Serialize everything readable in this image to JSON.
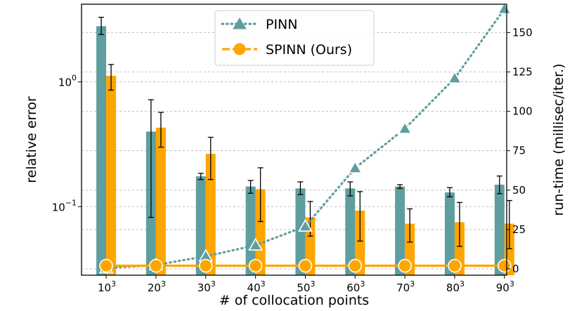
{
  "chart_data": {
    "type": "bar",
    "categories": [
      "10",
      "20",
      "30",
      "40",
      "50",
      "60",
      "70",
      "80",
      "90"
    ],
    "category_exponent": "3",
    "xlabel": "# of collocation points",
    "ylabel_left": "relative error",
    "ylabel_right": "run-time (millisec/iter.)",
    "left_axis": {
      "scale": "log",
      "range": [
        0.0282,
        4.2
      ],
      "ticks": [
        {
          "base": "10",
          "exp": "0",
          "value": 1
        },
        {
          "base": "10",
          "exp": "−1",
          "value": 0.1
        }
      ]
    },
    "right_axis": {
      "scale": "linear",
      "range": [
        -4,
        168
      ],
      "ticks": [
        0,
        25,
        50,
        75,
        100,
        125,
        150
      ]
    },
    "grid": true,
    "legend_position": "top-center",
    "bar_series": [
      {
        "name": "PINN",
        "color": "#5f9e9e",
        "values": [
          2.8,
          0.4,
          0.175,
          0.145,
          0.14,
          0.14,
          0.145,
          0.13,
          0.15
        ],
        "err_low": [
          2.4,
          0.082,
          0.165,
          0.128,
          0.125,
          0.122,
          0.14,
          0.12,
          0.127
        ],
        "err_high": [
          3.3,
          0.72,
          0.185,
          0.162,
          0.158,
          0.158,
          0.15,
          0.142,
          0.176
        ]
      },
      {
        "name": "SPINN (Ours)",
        "color": "#ffa500",
        "values": [
          1.12,
          0.43,
          0.265,
          0.138,
          0.082,
          0.093,
          0.073,
          0.075,
          0.073
        ],
        "err_low": [
          0.86,
          0.3,
          0.165,
          0.076,
          0.058,
          0.053,
          0.052,
          0.048,
          0.046
        ],
        "err_high": [
          1.38,
          0.57,
          0.36,
          0.205,
          0.11,
          0.132,
          0.096,
          0.108,
          0.112
        ]
      }
    ],
    "line_series": [
      {
        "name": "PINN",
        "color": "#5f9e9e",
        "values": [
          0.5,
          2.5,
          8,
          15,
          27,
          64,
          89,
          121,
          165
        ]
      },
      {
        "name": "SPINN (Ours)",
        "color": "#ffa500",
        "values": [
          2,
          2,
          2,
          2,
          2,
          2,
          2,
          2,
          2
        ]
      }
    ]
  }
}
